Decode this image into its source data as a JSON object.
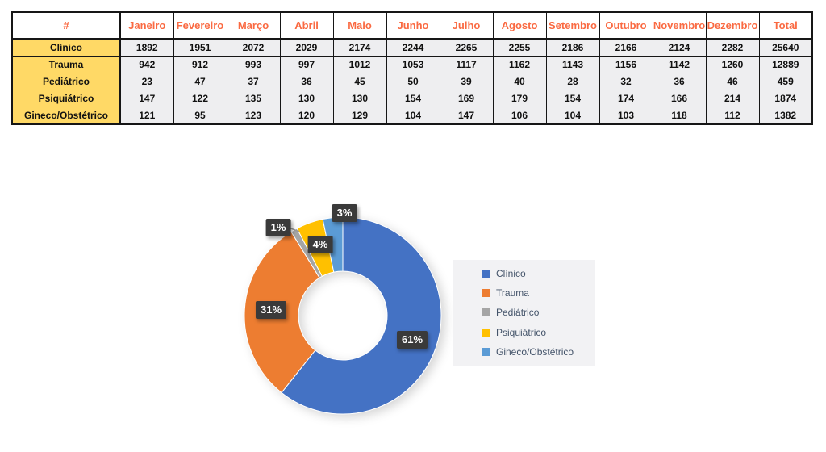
{
  "table": {
    "corner_label": "#",
    "columns": [
      "Janeiro",
      "Fevereiro",
      "Março",
      "Abril",
      "Maio",
      "Junho",
      "Julho",
      "Agosto",
      "Setembro",
      "Outubro",
      "Novembro",
      "Dezembro",
      "Total"
    ],
    "rows": [
      {
        "label": "Clínico",
        "values": [
          1892,
          1951,
          2072,
          2029,
          2174,
          2244,
          2265,
          2255,
          2186,
          2166,
          2124,
          2282,
          25640
        ]
      },
      {
        "label": "Trauma",
        "values": [
          942,
          912,
          993,
          997,
          1012,
          1053,
          1117,
          1162,
          1143,
          1156,
          1142,
          1260,
          12889
        ]
      },
      {
        "label": "Pediátrico",
        "values": [
          23,
          47,
          37,
          36,
          45,
          50,
          39,
          40,
          28,
          32,
          36,
          46,
          459
        ]
      },
      {
        "label": "Psiquiátrico",
        "values": [
          147,
          122,
          135,
          130,
          130,
          154,
          169,
          179,
          154,
          174,
          166,
          214,
          1874
        ]
      },
      {
        "label": "Gineco/Obstétrico",
        "values": [
          121,
          95,
          123,
          120,
          129,
          104,
          147,
          106,
          104,
          103,
          118,
          112,
          1382
        ]
      }
    ]
  },
  "chart_data": {
    "type": "pie",
    "subtype": "donut",
    "title": "",
    "categories": [
      "Clínico",
      "Trauma",
      "Pediátrico",
      "Psiquiátrico",
      "Gineco/Obstétrico"
    ],
    "values": [
      25640,
      12889,
      459,
      1874,
      1382
    ],
    "percent_labels": [
      "61%",
      "31%",
      "1%",
      "4%",
      "3%"
    ],
    "colors": [
      "#4472C4",
      "#ED7D31",
      "#A5A5A5",
      "#FFC000",
      "#5B9BD5"
    ],
    "donut_hole_ratio": 0.45,
    "start_angle_deg": 0,
    "direction": "clockwise",
    "legend_position": "right",
    "legend": [
      "Clínico",
      "Trauma",
      "Pediátrico",
      "Psiquiátrico",
      "Gineco/Obstétrico"
    ]
  },
  "colors": {
    "header_text": "#fa6a42",
    "row_label_bg": "#FFD966",
    "cell_bg": "#eeeef0",
    "table_border": "#161616",
    "label_box_bg": "#3a3a3a",
    "label_box_text": "#ffffff",
    "legend_bg": "#f2f2f4",
    "legend_text": "#44546A",
    "leader_line": "#9a9a9a"
  }
}
